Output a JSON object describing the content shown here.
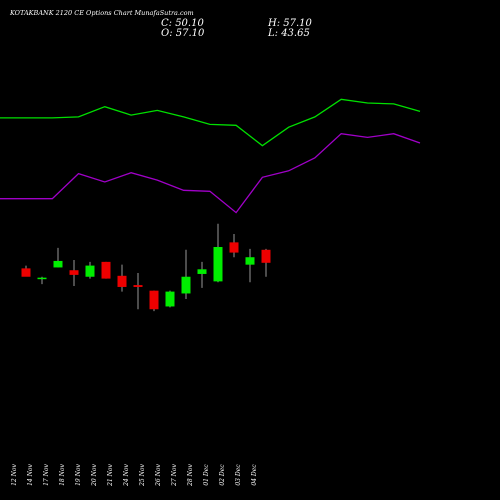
{
  "header": {
    "title": "KOTAKBANK 2120  CE Options  Chart MunafaSutra.com",
    "c_label": "C: 50.10",
    "o_label": "O: 57.10",
    "h_label": "H: 57.10",
    "l_label": "L: 43.65"
  },
  "chart_data": {
    "type": "candlestick",
    "categories": [
      "12 Nov",
      "14 Nov",
      "17 Nov",
      "18 Nov",
      "19 Nov",
      "20 Nov",
      "21 Nov",
      "24 Nov",
      "25 Nov",
      "26 Nov",
      "27 Nov",
      "28 Nov",
      "01 Dec",
      "02 Dec",
      "03 Dec",
      "04 Dec"
    ],
    "candles": [
      {
        "open": 54.0,
        "high": 55.5,
        "low": 50.0,
        "close": 49.5,
        "up": false
      },
      {
        "open": 48.5,
        "high": 49.5,
        "low": 45.5,
        "close": 49.0,
        "up": true
      },
      {
        "open": 54.5,
        "high": 65.0,
        "low": 54.5,
        "close": 58.0,
        "up": true
      },
      {
        "open": 53.0,
        "high": 58.5,
        "low": 44.5,
        "close": 50.5,
        "up": false
      },
      {
        "open": 49.5,
        "high": 57.5,
        "low": 48.5,
        "close": 55.5,
        "up": true
      },
      {
        "open": 57.5,
        "high": 57.5,
        "low": 48.5,
        "close": 48.5,
        "up": false
      },
      {
        "open": 50.0,
        "high": 56.0,
        "low": 41.5,
        "close": 44.0,
        "up": false
      },
      {
        "open": 45.0,
        "high": 51.5,
        "low": 32.0,
        "close": 44.0,
        "up": false
      },
      {
        "open": 42.0,
        "high": 42.0,
        "low": 31.0,
        "close": 32.0,
        "up": false
      },
      {
        "open": 33.5,
        "high": 42.0,
        "low": 33.0,
        "close": 41.5,
        "up": true
      },
      {
        "open": 40.5,
        "high": 64.0,
        "low": 37.5,
        "close": 49.5,
        "up": true
      },
      {
        "open": 51.0,
        "high": 57.5,
        "low": 43.5,
        "close": 53.5,
        "up": true
      },
      {
        "open": 47.0,
        "high": 78.0,
        "low": 46.5,
        "close": 65.5,
        "up": true
      },
      {
        "open": 68.0,
        "high": 72.5,
        "low": 60.0,
        "close": 62.5,
        "up": false
      },
      {
        "open": 60.0,
        "high": 64.5,
        "low": 46.5,
        "close": 56.0,
        "up": true
      },
      {
        "open": 64.0,
        "high": 64.5,
        "low": 49.5,
        "close": 57.0,
        "up": false
      }
    ],
    "ma_lines": [
      {
        "color": "#00e000",
        "values": [
          135,
          135,
          135.5,
          141,
          136.5,
          139,
          135.5,
          131.5,
          131,
          120,
          130,
          135.5,
          145,
          143,
          142.5,
          138.5
        ]
      },
      {
        "color": "#a000c8",
        "values": [
          91.5,
          91.5,
          105,
          100.5,
          105.5,
          101.5,
          96,
          95.5,
          84,
          103,
          106.5,
          113.5,
          126.5,
          124.5,
          126.5,
          121.5
        ]
      }
    ],
    "ylim": [
      -5,
      150
    ],
    "colors": {
      "up": "#00ee00",
      "down": "#ee0000",
      "wick": "#999999"
    }
  }
}
